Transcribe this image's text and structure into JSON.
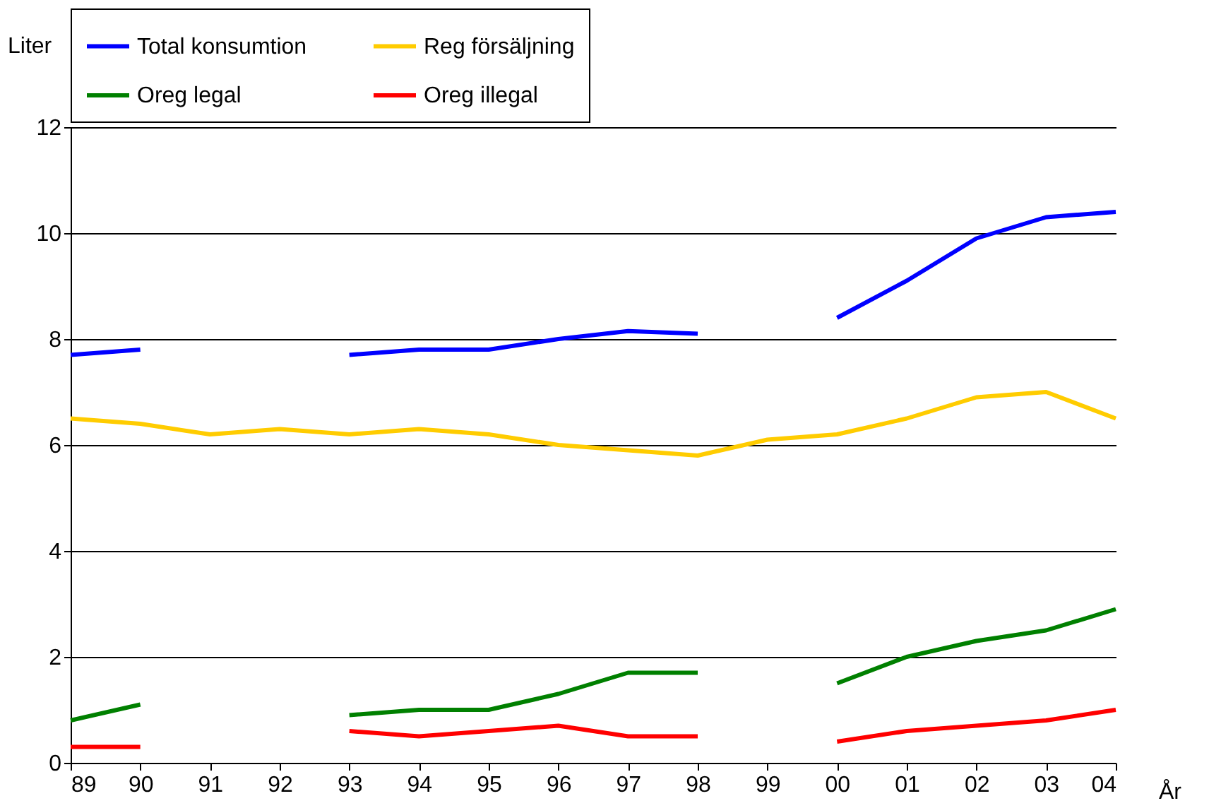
{
  "chart_data": {
    "type": "line",
    "ylabel": "Liter",
    "xlabel": "År",
    "categories": [
      "89",
      "90",
      "91",
      "92",
      "93",
      "94",
      "95",
      "96",
      "97",
      "98",
      "99",
      "00",
      "01",
      "02",
      "03",
      "04"
    ],
    "series": [
      {
        "name": "Total konsumtion",
        "color": "#0000ff",
        "values": [
          7.7,
          7.8,
          null,
          null,
          7.7,
          7.8,
          7.8,
          8.0,
          8.15,
          8.1,
          null,
          8.4,
          9.1,
          9.9,
          10.3,
          10.4
        ]
      },
      {
        "name": "Reg försäljning",
        "color": "#ffcc00",
        "values": [
          6.5,
          6.4,
          6.2,
          6.3,
          6.2,
          6.3,
          6.2,
          6.0,
          5.9,
          5.8,
          6.1,
          6.2,
          6.5,
          6.9,
          7.0,
          6.5
        ]
      },
      {
        "name": "Oreg legal",
        "color": "#008000",
        "values": [
          0.8,
          1.1,
          null,
          null,
          0.9,
          1.0,
          1.0,
          1.3,
          1.7,
          1.7,
          null,
          1.5,
          2.0,
          2.3,
          2.5,
          2.9
        ]
      },
      {
        "name": "Oreg illegal",
        "color": "#ff0000",
        "values": [
          0.3,
          0.3,
          null,
          null,
          0.6,
          0.5,
          0.6,
          0.7,
          0.5,
          0.5,
          null,
          0.4,
          0.6,
          0.7,
          0.8,
          1.0
        ]
      }
    ],
    "ylim": [
      0,
      12
    ],
    "yticks": [
      0,
      2,
      4,
      6,
      8,
      10,
      12
    ],
    "grid": "y",
    "legend": "top",
    "line_style": "solid",
    "marker": "none"
  }
}
